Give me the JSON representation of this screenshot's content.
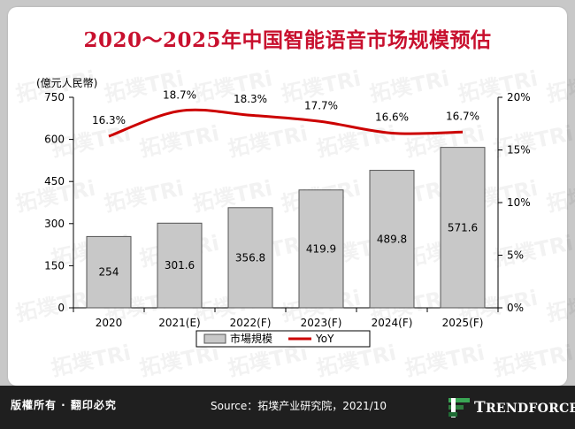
{
  "title": "2020～2025年中国智能语音市场规模预估",
  "watermark": "拓墣TRi",
  "chart_data": {
    "type": "bar",
    "categories": [
      "2020",
      "2021(E)",
      "2022(F)",
      "2023(F)",
      "2024(F)",
      "2025(F)"
    ],
    "series": [
      {
        "name": "市場規模",
        "type": "bar",
        "axis": "left",
        "color": "#c8c8c8",
        "values": [
          254,
          301.6,
          356.8,
          419.9,
          489.8,
          571.6
        ],
        "labels": [
          "254",
          "301.6",
          "356.8",
          "419.9",
          "489.8",
          "571.6"
        ]
      },
      {
        "name": "YoY",
        "type": "line",
        "axis": "right",
        "color": "#cc0000",
        "values": [
          16.3,
          18.7,
          18.3,
          17.7,
          16.6,
          16.7
        ],
        "labels": [
          "16.3%",
          "18.7%",
          "18.3%",
          "17.7%",
          "16.6%",
          "16.7%"
        ]
      }
    ],
    "ylabel": "(億元人民幣)",
    "ylim": [
      0,
      750
    ],
    "yticks": [
      "0",
      "150",
      "300",
      "450",
      "600",
      "750"
    ],
    "y2lim": [
      0,
      20
    ],
    "y2ticks": [
      "0%",
      "5%",
      "10%",
      "15%",
      "20%"
    ],
    "legend_position": "bottom",
    "grid": false
  },
  "footer": {
    "rights": "版權所有 · 翻印必究",
    "source": "Source：拓墣产业研究院，2021/10",
    "brand_initial": "T",
    "brand_rest": "RENDFORCE"
  },
  "colors": {
    "title": "#c8102e",
    "bar": "#c8c8c8",
    "line": "#cc0000",
    "footer": "#1f1f1f"
  }
}
